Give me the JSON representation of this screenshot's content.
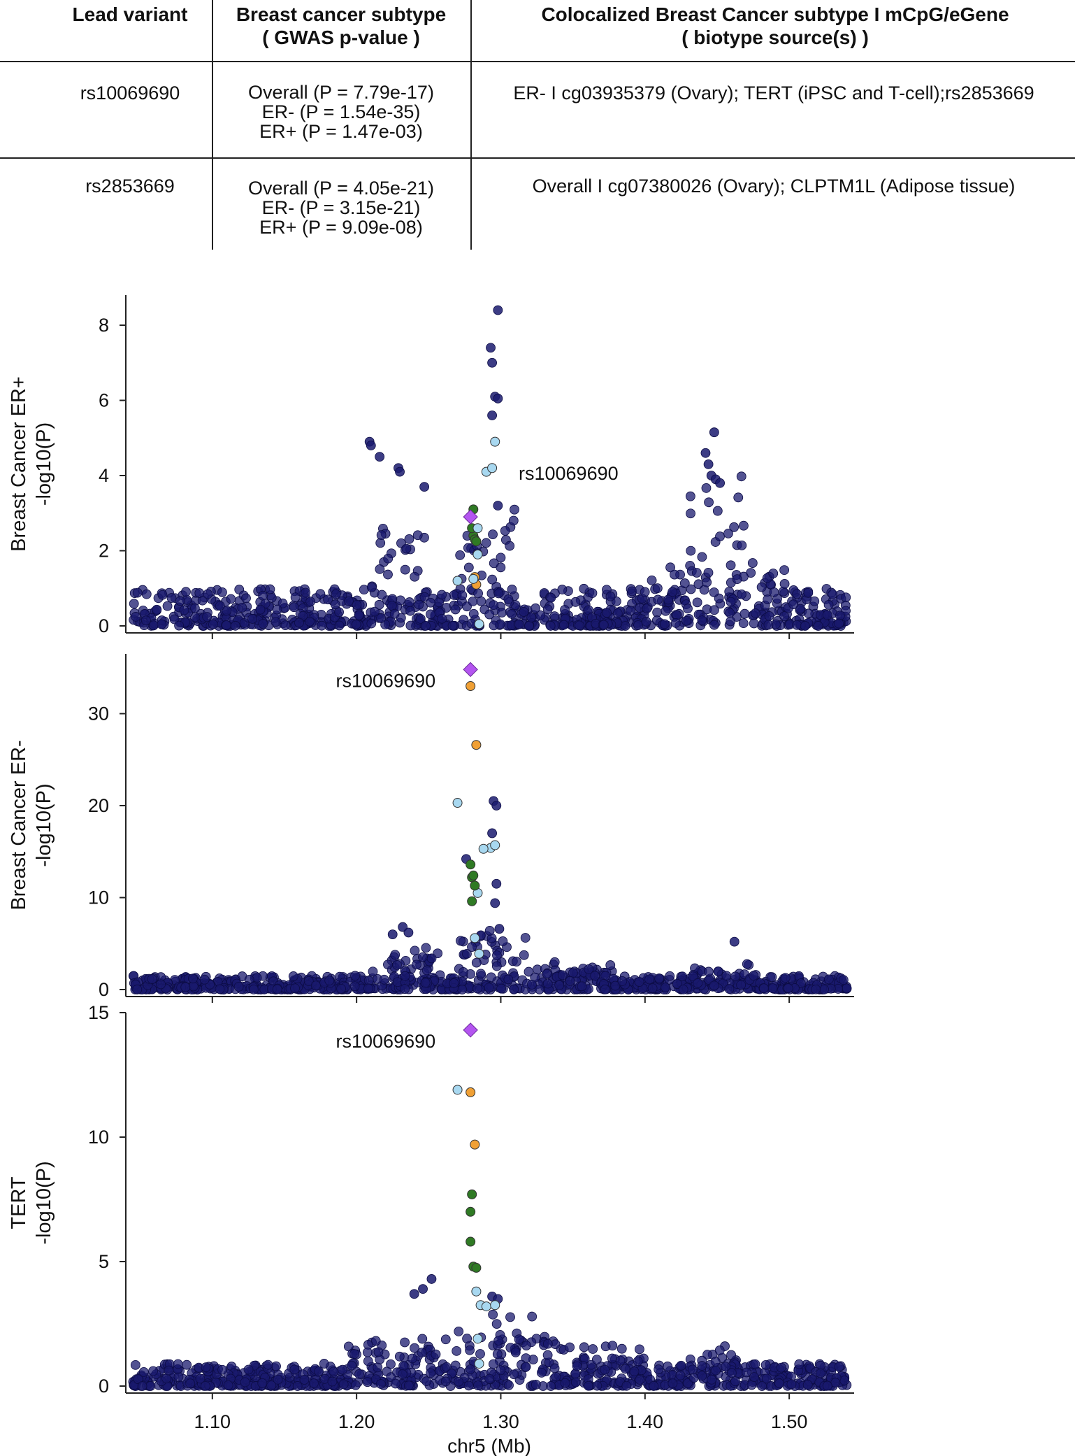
{
  "table": {
    "headers": [
      "Lead variant",
      "Breast cancer subtype\n( GWAS p-value )",
      "Colocalized Breast Cancer subtype I mCpG/eGene\n( biotype source(s) )"
    ],
    "rows": [
      {
        "lead": "rs10069690",
        "pvalues": [
          "Overall (P = 7.79e-17)",
          "ER-  (P = 1.54e-35)",
          "ER+ (P = 1.47e-03)"
        ],
        "coloc": "ER- I cg03935379 (Ovary); TERT (iPSC and T-cell);rs2853669"
      },
      {
        "lead": "rs2853669",
        "pvalues": [
          "Overall (P = 4.05e-21)",
          "ER-  (P = 3.15e-21)",
          "ER+ (P = 9.09e-08)"
        ],
        "coloc": "Overall I cg07380026 (Ovary); CLPTM1L (Adipose tissue)"
      }
    ]
  },
  "chart_data": {
    "type": "scatter",
    "xlabel": "chr5 (Mb)",
    "xlim": [
      1.04,
      1.545
    ],
    "x_ticks": [
      "1.10",
      "1.20",
      "1.30",
      "1.40",
      "1.50"
    ],
    "colors": {
      "background": "#1a1a6e",
      "lead": "#b455f0",
      "orange": "#f0a035",
      "green": "#2f7a24",
      "lightblue": "#a8d8f0",
      "axis": "#222222"
    },
    "panels": [
      {
        "ylabel": [
          "Breast Cancer ER+",
          "-log10(P)"
        ],
        "ylim": [
          0,
          8.8
        ],
        "yticks": [
          0,
          2,
          4,
          6,
          8
        ],
        "lead": {
          "label": "rs10069690",
          "x": 1.279,
          "y": 2.9
        },
        "highlighted": [
          {
            "x": 1.281,
            "y": 3.1,
            "c": "green"
          },
          {
            "x": 1.281,
            "y": 2.4,
            "c": "green"
          },
          {
            "x": 1.282,
            "y": 2.3,
            "c": "green"
          },
          {
            "x": 1.28,
            "y": 2.6,
            "c": "green"
          },
          {
            "x": 1.283,
            "y": 2.25,
            "c": "green"
          },
          {
            "x": 1.283,
            "y": 1.1,
            "c": "orange"
          },
          {
            "x": 1.282,
            "y": 1.3,
            "c": "orange"
          },
          {
            "x": 1.29,
            "y": 4.1,
            "c": "lightblue"
          },
          {
            "x": 1.294,
            "y": 4.2,
            "c": "lightblue"
          },
          {
            "x": 1.296,
            "y": 4.9,
            "c": "lightblue"
          },
          {
            "x": 1.284,
            "y": 2.6,
            "c": "lightblue"
          },
          {
            "x": 1.284,
            "y": 1.9,
            "c": "lightblue"
          },
          {
            "x": 1.27,
            "y": 1.2,
            "c": "lightblue"
          },
          {
            "x": 1.285,
            "y": 0.05,
            "c": "lightblue"
          },
          {
            "x": 1.281,
            "y": 1.25,
            "c": "lightblue"
          }
        ],
        "peaks": [
          {
            "x": 1.293,
            "y": 7.4
          },
          {
            "x": 1.294,
            "y": 7.0
          },
          {
            "x": 1.298,
            "y": 8.4
          },
          {
            "x": 1.296,
            "y": 6.1
          },
          {
            "x": 1.298,
            "y": 6.05
          },
          {
            "x": 1.294,
            "y": 5.6
          },
          {
            "x": 1.298,
            "y": 3.2
          },
          {
            "x": 1.209,
            "y": 4.9
          },
          {
            "x": 1.21,
            "y": 4.8
          },
          {
            "x": 1.216,
            "y": 4.5
          },
          {
            "x": 1.229,
            "y": 4.2
          },
          {
            "x": 1.23,
            "y": 4.1
          },
          {
            "x": 1.247,
            "y": 3.7
          },
          {
            "x": 1.448,
            "y": 5.15
          },
          {
            "x": 1.442,
            "y": 4.6
          },
          {
            "x": 1.444,
            "y": 4.3
          },
          {
            "x": 1.446,
            "y": 4.0
          },
          {
            "x": 1.449,
            "y": 3.9
          },
          {
            "x": 1.452,
            "y": 3.8
          }
        ]
      },
      {
        "ylabel": [
          "Breast Cancer ER-",
          "-log10(P)"
        ],
        "ylim": [
          0,
          36.5
        ],
        "yticks": [
          0,
          10,
          20,
          30
        ],
        "lead": {
          "label": "rs10069690",
          "x": 1.279,
          "y": 34.8
        },
        "highlighted": [
          {
            "x": 1.279,
            "y": 33.0,
            "c": "orange"
          },
          {
            "x": 1.283,
            "y": 26.6,
            "c": "orange"
          },
          {
            "x": 1.27,
            "y": 20.3,
            "c": "lightblue"
          },
          {
            "x": 1.293,
            "y": 15.4,
            "c": "lightblue"
          },
          {
            "x": 1.296,
            "y": 15.7,
            "c": "lightblue"
          },
          {
            "x": 1.288,
            "y": 15.3,
            "c": "lightblue"
          },
          {
            "x": 1.284,
            "y": 10.5,
            "c": "lightblue"
          },
          {
            "x": 1.282,
            "y": 5.6,
            "c": "lightblue"
          },
          {
            "x": 1.285,
            "y": 3.9,
            "c": "lightblue"
          },
          {
            "x": 1.279,
            "y": 13.6,
            "c": "green"
          },
          {
            "x": 1.28,
            "y": 12.2,
            "c": "green"
          },
          {
            "x": 1.282,
            "y": 11.3,
            "c": "green"
          },
          {
            "x": 1.28,
            "y": 9.6,
            "c": "green"
          },
          {
            "x": 1.281,
            "y": 12.4,
            "c": "green"
          }
        ],
        "peaks": [
          {
            "x": 1.295,
            "y": 20.5
          },
          {
            "x": 1.297,
            "y": 20.0
          },
          {
            "x": 1.294,
            "y": 17.0
          },
          {
            "x": 1.276,
            "y": 14.2
          },
          {
            "x": 1.297,
            "y": 11.5
          },
          {
            "x": 1.296,
            "y": 9.4
          },
          {
            "x": 1.299,
            "y": 6.6
          },
          {
            "x": 1.232,
            "y": 6.8
          },
          {
            "x": 1.236,
            "y": 6.2
          },
          {
            "x": 1.225,
            "y": 6.0
          },
          {
            "x": 1.462,
            "y": 5.2
          }
        ]
      },
      {
        "ylabel": [
          "TERT",
          "-log10(P)"
        ],
        "ylim": [
          0,
          15
        ],
        "yticks": [
          0,
          5,
          10,
          15
        ],
        "lead": {
          "label": "rs10069690",
          "x": 1.279,
          "y": 14.3
        },
        "highlighted": [
          {
            "x": 1.279,
            "y": 11.8,
            "c": "orange"
          },
          {
            "x": 1.282,
            "y": 9.7,
            "c": "orange"
          },
          {
            "x": 1.27,
            "y": 11.9,
            "c": "lightblue"
          },
          {
            "x": 1.283,
            "y": 3.8,
            "c": "lightblue"
          },
          {
            "x": 1.286,
            "y": 3.25,
            "c": "lightblue"
          },
          {
            "x": 1.29,
            "y": 3.2,
            "c": "lightblue"
          },
          {
            "x": 1.296,
            "y": 3.25,
            "c": "lightblue"
          },
          {
            "x": 1.284,
            "y": 1.9,
            "c": "lightblue"
          },
          {
            "x": 1.285,
            "y": 0.9,
            "c": "lightblue"
          },
          {
            "x": 1.28,
            "y": 7.7,
            "c": "green"
          },
          {
            "x": 1.279,
            "y": 7.0,
            "c": "green"
          },
          {
            "x": 1.279,
            "y": 5.8,
            "c": "green"
          },
          {
            "x": 1.281,
            "y": 4.8,
            "c": "green"
          },
          {
            "x": 1.283,
            "y": 4.75,
            "c": "green"
          }
        ],
        "peaks": [
          {
            "x": 1.24,
            "y": 3.7
          },
          {
            "x": 1.246,
            "y": 3.9
          },
          {
            "x": 1.252,
            "y": 4.3
          },
          {
            "x": 1.294,
            "y": 3.6
          },
          {
            "x": 1.298,
            "y": 3.5
          }
        ]
      }
    ]
  }
}
